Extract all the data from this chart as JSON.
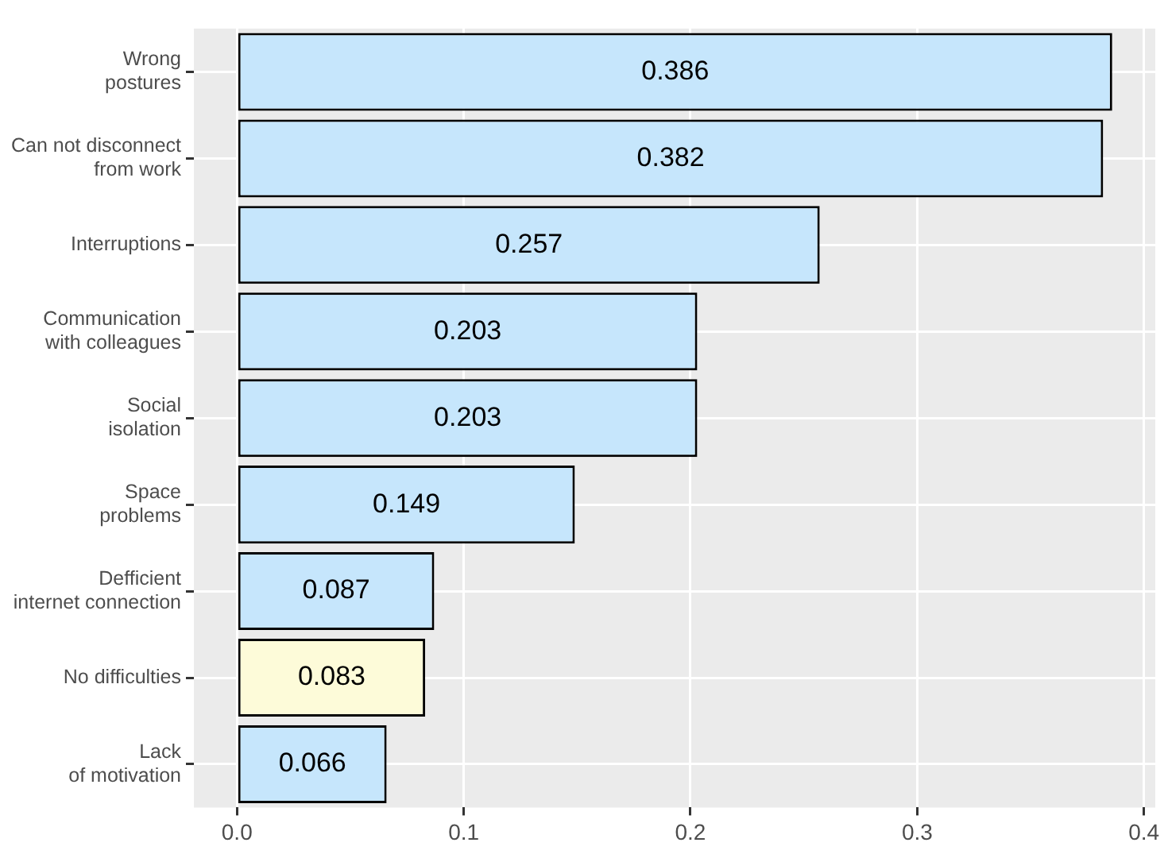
{
  "chart_data": {
    "type": "bar",
    "orientation": "horizontal",
    "categories": [
      "Wrong\npostures",
      "Can not disconnect\nfrom work",
      "Interruptions",
      "Communication\nwith colleagues",
      "Social\nisolation",
      "Space\nproblems",
      "Defficient\ninternet connection",
      "No difficulties",
      "Lack\nof motivation"
    ],
    "values": [
      0.386,
      0.382,
      0.257,
      0.203,
      0.203,
      0.149,
      0.087,
      0.083,
      0.066
    ],
    "colors": [
      "#c6e6fc",
      "#c6e6fc",
      "#c6e6fc",
      "#c6e6fc",
      "#c6e6fc",
      "#c6e6fc",
      "#c6e6fc",
      "#fdfbd9",
      "#c6e6fc"
    ],
    "xlim": [
      -0.019,
      0.405
    ],
    "xticks": [
      {
        "value": 0,
        "label": "0.0"
      },
      {
        "value": 0.1,
        "label": "0.1"
      },
      {
        "value": 0.2,
        "label": "0.2"
      },
      {
        "value": 0.3,
        "label": "0.3"
      },
      {
        "value": 0.4,
        "label": "0.4"
      }
    ],
    "grid": true,
    "data_labels": true
  }
}
